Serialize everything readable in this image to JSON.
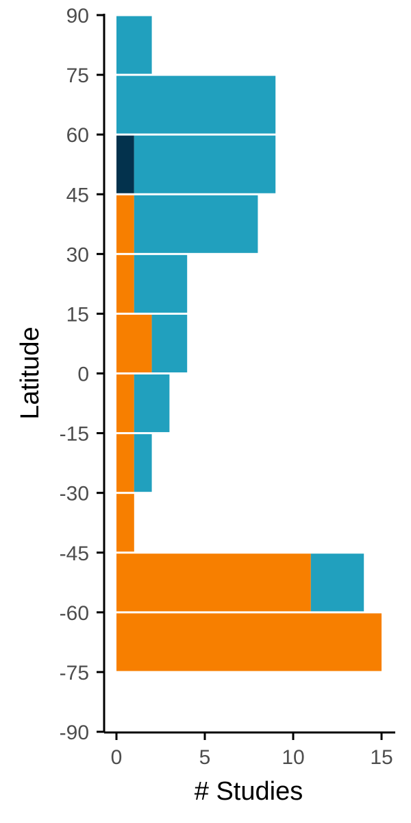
{
  "chart_data": {
    "type": "bar",
    "orientation": "horizontal",
    "stacked": true,
    "xlabel": "# Studies",
    "ylabel": "Latitude",
    "xlim": [
      0,
      15
    ],
    "ylim": [
      -90,
      90
    ],
    "x_ticks": [
      0,
      5,
      10,
      15
    ],
    "y_ticks": [
      90,
      75,
      60,
      45,
      30,
      15,
      0,
      -15,
      -30,
      -45,
      -60,
      -75,
      -90
    ],
    "bins": [
      {
        "lat_min": 75,
        "lat_max": 90,
        "segments": [
          {
            "group": "dark",
            "value": 0
          },
          {
            "group": "orange",
            "value": 0
          },
          {
            "group": "blue",
            "value": 2
          }
        ]
      },
      {
        "lat_min": 60,
        "lat_max": 75,
        "segments": [
          {
            "group": "dark",
            "value": 0
          },
          {
            "group": "orange",
            "value": 0
          },
          {
            "group": "blue",
            "value": 9
          }
        ]
      },
      {
        "lat_min": 45,
        "lat_max": 60,
        "segments": [
          {
            "group": "dark",
            "value": 1
          },
          {
            "group": "orange",
            "value": 0
          },
          {
            "group": "blue",
            "value": 8
          }
        ]
      },
      {
        "lat_min": 30,
        "lat_max": 45,
        "segments": [
          {
            "group": "dark",
            "value": 0
          },
          {
            "group": "orange",
            "value": 1
          },
          {
            "group": "blue",
            "value": 7
          }
        ]
      },
      {
        "lat_min": 15,
        "lat_max": 30,
        "segments": [
          {
            "group": "dark",
            "value": 0
          },
          {
            "group": "orange",
            "value": 1
          },
          {
            "group": "blue",
            "value": 3
          }
        ]
      },
      {
        "lat_min": 0,
        "lat_max": 15,
        "segments": [
          {
            "group": "dark",
            "value": 0
          },
          {
            "group": "orange",
            "value": 2
          },
          {
            "group": "blue",
            "value": 2
          }
        ]
      },
      {
        "lat_min": -15,
        "lat_max": 0,
        "segments": [
          {
            "group": "dark",
            "value": 0
          },
          {
            "group": "orange",
            "value": 1
          },
          {
            "group": "blue",
            "value": 2
          }
        ]
      },
      {
        "lat_min": -30,
        "lat_max": -15,
        "segments": [
          {
            "group": "dark",
            "value": 0
          },
          {
            "group": "orange",
            "value": 1
          },
          {
            "group": "blue",
            "value": 1
          }
        ]
      },
      {
        "lat_min": -45,
        "lat_max": -30,
        "segments": [
          {
            "group": "dark",
            "value": 0
          },
          {
            "group": "orange",
            "value": 1
          },
          {
            "group": "blue",
            "value": 0
          }
        ]
      },
      {
        "lat_min": -60,
        "lat_max": -45,
        "segments": [
          {
            "group": "dark",
            "value": 0
          },
          {
            "group": "orange",
            "value": 11
          },
          {
            "group": "blue",
            "value": 3
          }
        ]
      },
      {
        "lat_min": -75,
        "lat_max": -60,
        "segments": [
          {
            "group": "dark",
            "value": 0
          },
          {
            "group": "orange",
            "value": 15
          },
          {
            "group": "blue",
            "value": 0
          }
        ]
      }
    ],
    "colors": {
      "dark": "#03324d",
      "orange": "#f77f00",
      "blue": "#21a0be"
    },
    "grid": false,
    "legend": "none"
  }
}
